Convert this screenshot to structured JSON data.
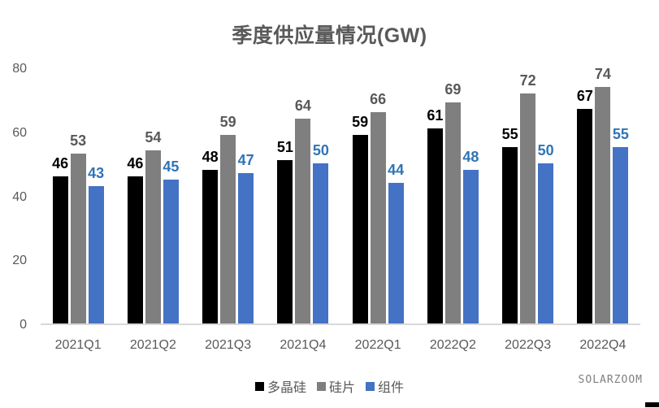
{
  "title": "季度供应量情况(GW)",
  "watermark": "SOLARZOOM",
  "colors": {
    "background": "#ffffff",
    "title_text": "#595959",
    "axis_text": "#595959",
    "axis_line": "#d9d9d9",
    "series_polysilicon": "#000000",
    "series_wafer": "#7f7f7f",
    "series_module": "#4472c4",
    "label_blue": "#2e75b6",
    "label_gray": "#595959"
  },
  "chart_data": {
    "type": "bar",
    "title": "季度供应量情况(GW)",
    "categories": [
      "2021Q1",
      "2021Q2",
      "2021Q3",
      "2021Q4",
      "2022Q1",
      "2022Q2",
      "2022Q3",
      "2022Q4"
    ],
    "series": [
      {
        "name": "多晶硅",
        "color": "#000000",
        "label_color": "#000000",
        "values": [
          46,
          46,
          48,
          51,
          59,
          61,
          55,
          67
        ]
      },
      {
        "name": "硅片",
        "color": "#7f7f7f",
        "label_color": "#595959",
        "values": [
          53,
          54,
          59,
          64,
          66,
          69,
          72,
          74
        ]
      },
      {
        "name": "组件",
        "color": "#4472c4",
        "label_color": "#2e75b6",
        "values": [
          43,
          45,
          47,
          50,
          44,
          48,
          50,
          55
        ]
      }
    ],
    "xlabel": "",
    "ylabel": "",
    "ylim": [
      0,
      80
    ],
    "yticks": [
      0,
      20,
      40,
      60,
      80
    ],
    "grid": false,
    "legend_position": "bottom",
    "data_labels": true
  }
}
